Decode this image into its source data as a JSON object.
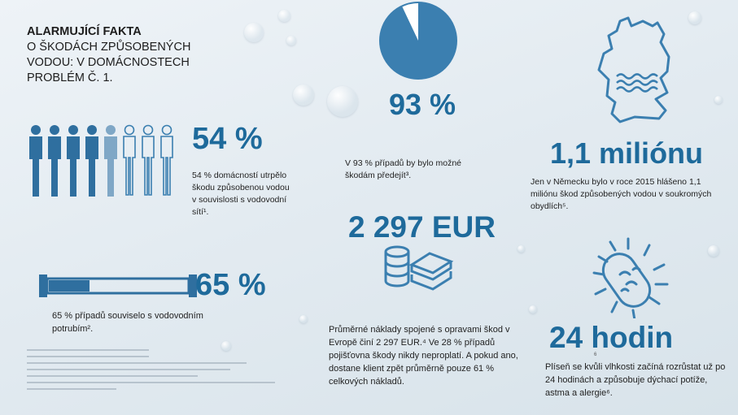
{
  "title": {
    "line1": "ALARMUJÍCÍ FAKTA",
    "line2": "O ŠKODÁCH ZPŮSOBENÝCH VODOU: V DOMÁCNOSTECH PROBLÉM Č. 1."
  },
  "facts": {
    "households_pct": "54 %",
    "households_text": "54 % domácností utrpělo škodu způsobenou vodou v souvislosti s vodovodní sítí¹.",
    "pipes_pct": "65 %",
    "pipes_text": "65 % případů souviselo s vodovodním potrubím².",
    "preventable_pct": "93 %",
    "preventable_value": 0.93,
    "preventable_text": "V 93 % případů by bylo možné škodám předejít³.",
    "cost_value": "2 297 EUR",
    "cost_text": "Průměrné náklady spojené s opravami škod v Evropě činí 2 297 EUR.⁴ Ve 28 % případů pojišťovna škody nikdy neproplatí. A pokud ano, dostane klient zpět průměrně pouze 61 % celkových nákladů.",
    "germany_value": "1,1 miliónu",
    "germany_text": "Jen v Německu bylo v roce 2015 hlášeno 1,1 miliónu škod způsobených vodou v soukromých obydlích⁵.",
    "mold_value": "24 hodin",
    "mold_mark": "6",
    "mold_text": "Plíseň se kvůli vlhkosti začíná rozrůstat už po 24 hodinách a způsobuje dýchací potíže, astma a alergie⁶."
  },
  "colors": {
    "accent": "#1e6a9b",
    "icon": "#3b7fb0",
    "icon_light": "#a9c4d8"
  }
}
